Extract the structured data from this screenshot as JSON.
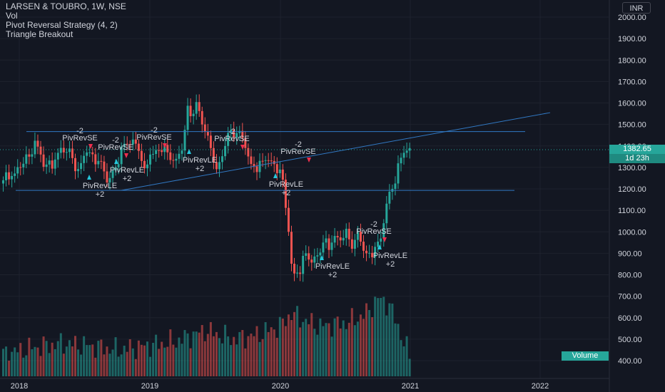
{
  "header": {
    "symbol_line": "LARSEN & TOUBRO, 1W, NSE",
    "indicator_1": "Vol",
    "indicator_2": "Pivot Reversal Strategy (4, 2)",
    "indicator_3": "Triangle Breakout"
  },
  "price_axis": {
    "currency": "INR",
    "last_price": "1382.65",
    "countdown": "1d 23h"
  },
  "volume_label": "Volume",
  "colors": {
    "background": "#131722",
    "up": "#26a69a",
    "down": "#ef5350",
    "trendline": "#2962ff",
    "arrow_up": "#26c6da",
    "arrow_down": "#ef2f4e",
    "text": "#d1d4dc"
  },
  "chart_data": {
    "type": "candlestick",
    "title": "LARSEN & TOUBRO, 1W, NSE",
    "x_ticks": [
      "2018",
      "2019",
      "2020",
      "2021",
      "2022"
    ],
    "y_ticks": [
      400.0,
      500.0,
      600.0,
      700.0,
      800.0,
      900.0,
      1000.0,
      1100.0,
      1200.0,
      1300.0,
      1400.0,
      1500.0,
      1600.0,
      1700.0,
      1800.0,
      1900.0,
      2000.0
    ],
    "ylim": [
      340,
      2080
    ],
    "close_keyframes": [
      [
        0,
        1240
      ],
      [
        3,
        1260
      ],
      [
        6,
        1300
      ],
      [
        9,
        1350
      ],
      [
        11,
        1440
      ],
      [
        14,
        1310
      ],
      [
        17,
        1320
      ],
      [
        20,
        1370
      ],
      [
        23,
        1370
      ],
      [
        26,
        1290
      ],
      [
        29,
        1380
      ],
      [
        31,
        1360
      ],
      [
        33,
        1330
      ],
      [
        36,
        1230
      ],
      [
        39,
        1300
      ],
      [
        42,
        1410
      ],
      [
        45,
        1430
      ],
      [
        47,
        1400
      ],
      [
        49,
        1260
      ],
      [
        51,
        1360
      ],
      [
        54,
        1380
      ],
      [
        57,
        1370
      ],
      [
        60,
        1340
      ],
      [
        62,
        1390
      ],
      [
        64,
        1560
      ],
      [
        66,
        1550
      ],
      [
        67,
        1600
      ],
      [
        69,
        1500
      ],
      [
        71,
        1420
      ],
      [
        73,
        1360
      ],
      [
        74,
        1300
      ],
      [
        76,
        1350
      ],
      [
        78,
        1460
      ],
      [
        80,
        1470
      ],
      [
        82,
        1450
      ],
      [
        84,
        1390
      ],
      [
        86,
        1300
      ],
      [
        88,
        1310
      ],
      [
        90,
        1330
      ],
      [
        92,
        1340
      ],
      [
        94,
        1320
      ],
      [
        96,
        1290
      ],
      [
        97,
        1210
      ],
      [
        98,
        1100
      ],
      [
        99,
        1000
      ],
      [
        100,
        850
      ],
      [
        101,
        800
      ],
      [
        103,
        820
      ],
      [
        105,
        900
      ],
      [
        107,
        870
      ],
      [
        109,
        900
      ],
      [
        111,
        950
      ],
      [
        113,
        920
      ],
      [
        115,
        980
      ],
      [
        117,
        960
      ],
      [
        119,
        980
      ],
      [
        121,
        950
      ],
      [
        123,
        1000
      ],
      [
        125,
        920
      ],
      [
        127,
        880
      ],
      [
        129,
        930
      ],
      [
        131,
        960
      ],
      [
        133,
        1120
      ],
      [
        135,
        1200
      ],
      [
        137,
        1320
      ],
      [
        139,
        1370
      ],
      [
        141,
        1390
      ]
    ],
    "volume_keyframes": [
      [
        0,
        430
      ],
      [
        10,
        460
      ],
      [
        20,
        480
      ],
      [
        30,
        470
      ],
      [
        40,
        450
      ],
      [
        50,
        470
      ],
      [
        60,
        490
      ],
      [
        70,
        540
      ],
      [
        80,
        500
      ],
      [
        88,
        520
      ],
      [
        96,
        560
      ],
      [
        100,
        620
      ],
      [
        104,
        590
      ],
      [
        110,
        560
      ],
      [
        120,
        580
      ],
      [
        126,
        620
      ],
      [
        130,
        690
      ],
      [
        134,
        660
      ],
      [
        141,
        420
      ]
    ],
    "reference_lines": [
      {
        "type": "horizontal",
        "price": 1467
      },
      {
        "type": "horizontal",
        "price": 1193
      },
      {
        "type": "trendline",
        "from_price": 1193,
        "to_price": 1555
      }
    ],
    "signals": [
      {
        "label": "PivRevSE",
        "qty": "-2"
      },
      {
        "label": "PivRevSE",
        "qty": "-2"
      },
      {
        "label": "PivRevSE",
        "qty": "-2"
      },
      {
        "label": "PivRevSE",
        "qty": "-2"
      },
      {
        "label": "PivRevSE",
        "qty": "-2"
      },
      {
        "label": "PivRevSE",
        "qty": "-2"
      },
      {
        "label": "PivRevLE",
        "qty": "+2"
      },
      {
        "label": "PivRevLE",
        "qty": "+2"
      },
      {
        "label": "PivRevLE",
        "qty": "+2"
      },
      {
        "label": "PivRevLE",
        "qty": "+2"
      },
      {
        "label": "PivRevLE",
        "qty": "+2"
      },
      {
        "label": "PivRevLE",
        "qty": "+2"
      }
    ]
  }
}
